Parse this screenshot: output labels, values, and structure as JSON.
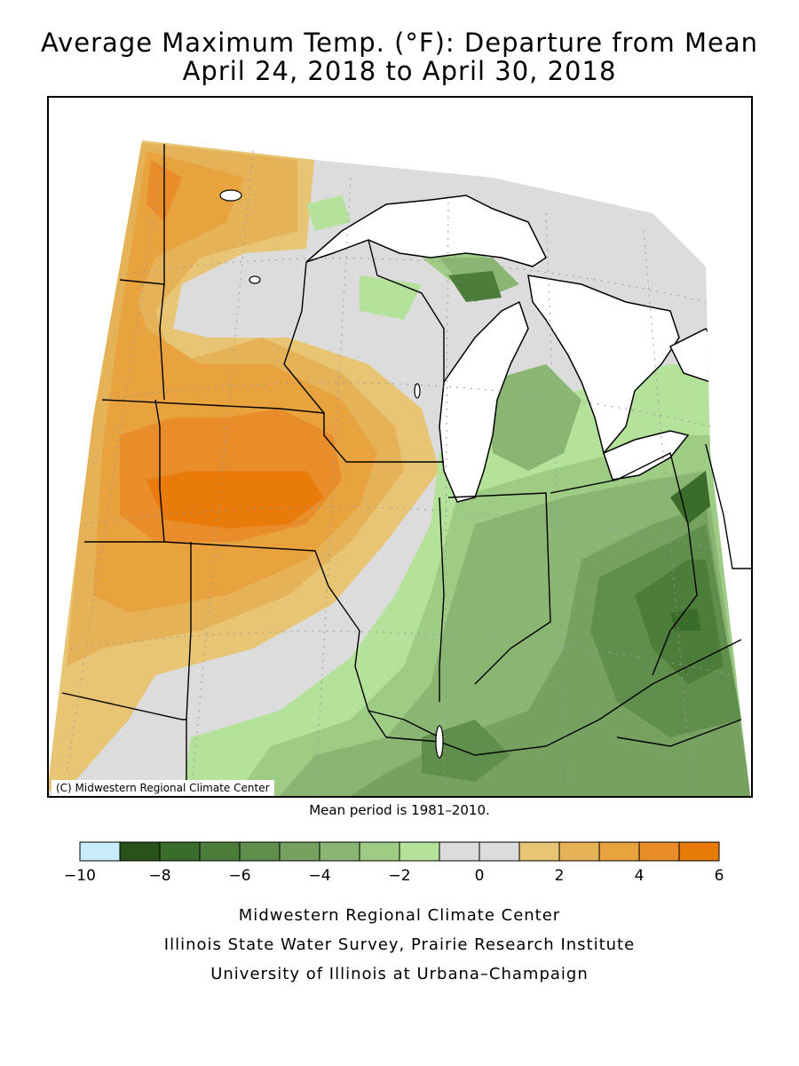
{
  "title": {
    "line1": "Average Maximum Temp. (°F): Departure from Mean",
    "line2": "April 24, 2018 to April 30, 2018"
  },
  "map": {
    "credit": "(C) Midwestern Regional Climate Center",
    "colors": {
      "water": "#ffffff",
      "neutral": "#dcdcdc"
    }
  },
  "mean_period": "Mean period is 1981–2010.",
  "legend": {
    "min": -10,
    "max": 6,
    "tick_labels": [
      "−10",
      "−8",
      "−6",
      "−4",
      "−2",
      "0",
      "2",
      "4",
      "6"
    ],
    "bins": [
      {
        "from": -10,
        "to": -9,
        "color": "#c8ecfb"
      },
      {
        "from": -9,
        "to": -8,
        "color": "#285219"
      },
      {
        "from": -8,
        "to": -7,
        "color": "#3a6d2b"
      },
      {
        "from": -7,
        "to": -6,
        "color": "#4d7d3b"
      },
      {
        "from": -6,
        "to": -5,
        "color": "#608e4c"
      },
      {
        "from": -5,
        "to": -4,
        "color": "#76a161"
      },
      {
        "from": -4,
        "to": -3,
        "color": "#8bb572"
      },
      {
        "from": -3,
        "to": -2,
        "color": "#9fcc85"
      },
      {
        "from": -2,
        "to": -1,
        "color": "#b5e29a"
      },
      {
        "from": -1,
        "to": 0,
        "color": "#dcdcdc"
      },
      {
        "from": 0,
        "to": 1,
        "color": "#dcdcdc"
      },
      {
        "from": 1,
        "to": 2,
        "color": "#e8c575"
      },
      {
        "from": 2,
        "to": 3,
        "color": "#e6b257"
      },
      {
        "from": 3,
        "to": 4,
        "color": "#e8a23e"
      },
      {
        "from": 4,
        "to": 5,
        "color": "#e88d2a"
      },
      {
        "from": 5,
        "to": 6,
        "color": "#e87b0a"
      }
    ]
  },
  "footer": {
    "line1": "Midwestern Regional Climate Center",
    "line2": "Illinois State Water Survey, Prairie Research Institute",
    "line3": "University of Illinois at Urbana–Champaign"
  }
}
